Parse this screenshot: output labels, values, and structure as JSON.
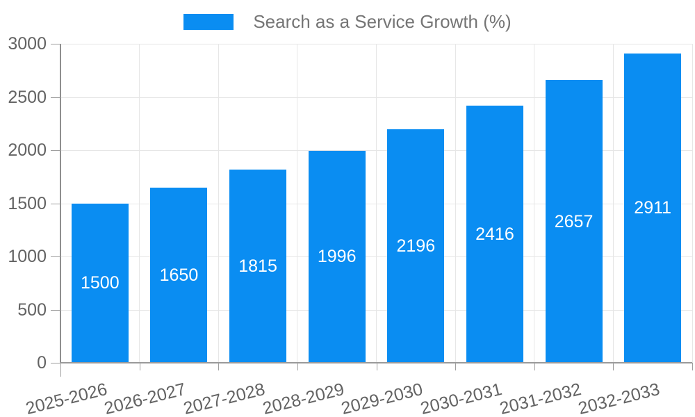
{
  "chart_data": {
    "type": "bar",
    "title": "Search as a Service Growth (%)",
    "legend": {
      "label": "Search as a Service Growth (%)",
      "position": "top"
    },
    "categories": [
      "2025-2026",
      "2026-2027",
      "2027-2028",
      "2028-2029",
      "2029-2030",
      "2030-2031",
      "2031-2032",
      "2032-2033"
    ],
    "series": [
      {
        "name": "Search as a Service Growth (%)",
        "values": [
          1500,
          1650,
          1815,
          1996,
          2196,
          2416,
          2657,
          2911
        ]
      }
    ],
    "value_labels": [
      "1500",
      "1650",
      "1815",
      "1996",
      "2196",
      "2416",
      "2657",
      "2911"
    ],
    "xlabel": "",
    "ylabel": "",
    "ylim": [
      0,
      3000
    ],
    "y_ticks": [
      0,
      500,
      1000,
      1500,
      2000,
      2500,
      3000
    ],
    "grid": true,
    "colors": {
      "bar": "#0a8df2",
      "grid": "#e6e6e6",
      "axis": "#9a9a9a",
      "tick_label": "#636363",
      "legend_text": "#757575",
      "value_label": "#ffffff"
    }
  }
}
